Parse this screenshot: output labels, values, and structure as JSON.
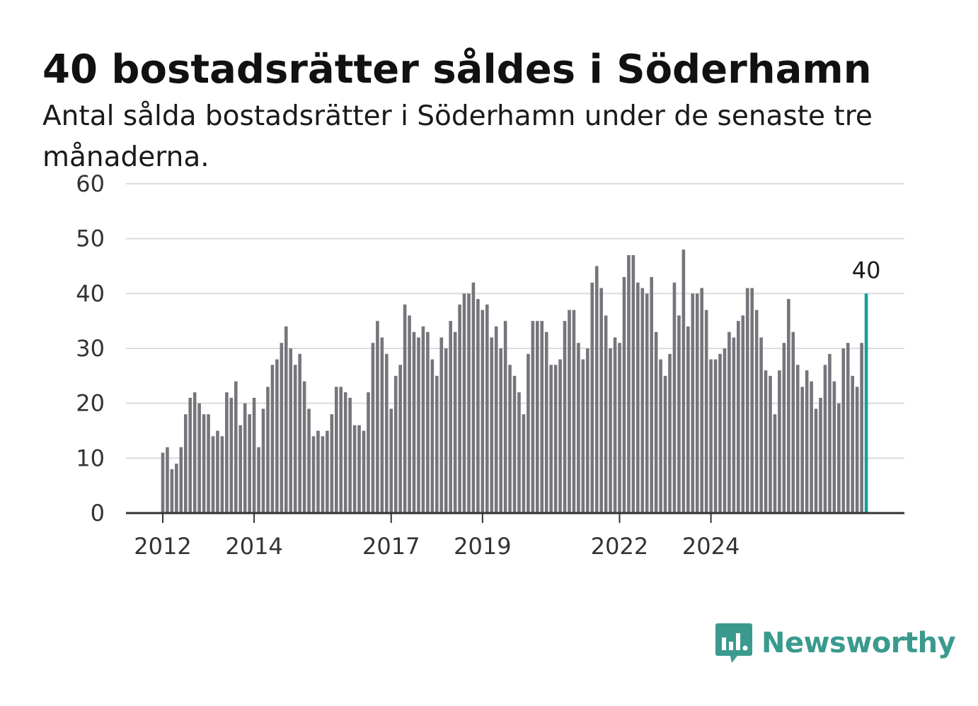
{
  "title": "40 bostadsrätter såldes i Söderhamn",
  "subtitle": "Antal sålda bostadsrätter i Söderhamn under de senaste tre månaderna.",
  "brand": {
    "name": "Newsworthy",
    "icon": "bar-chart-speech-bubble-icon",
    "color": "#3a9a8e"
  },
  "colors": {
    "bar": "#75757b",
    "highlight": "#14a096",
    "grid": "#dcdcdc",
    "axis": "#333333"
  },
  "chart_data": {
    "type": "bar",
    "ylim": [
      0,
      60
    ],
    "yticks": [
      0,
      10,
      20,
      30,
      40,
      50,
      60
    ],
    "xticks": [
      {
        "label": "2012",
        "index": 0
      },
      {
        "label": "2014",
        "index": 20
      },
      {
        "label": "2017",
        "index": 50
      },
      {
        "label": "2019",
        "index": 70
      },
      {
        "label": "2022",
        "index": 100
      },
      {
        "label": "2024",
        "index": 120
      }
    ],
    "values": [
      11,
      12,
      8,
      9,
      12,
      18,
      21,
      22,
      20,
      18,
      18,
      14,
      15,
      14,
      22,
      21,
      24,
      16,
      20,
      18,
      21,
      12,
      19,
      23,
      27,
      28,
      31,
      34,
      30,
      27,
      29,
      24,
      19,
      14,
      15,
      14,
      15,
      18,
      23,
      23,
      22,
      21,
      16,
      16,
      15,
      22,
      31,
      35,
      32,
      29,
      19,
      25,
      27,
      38,
      36,
      33,
      32,
      34,
      33,
      28,
      25,
      32,
      30,
      35,
      33,
      38,
      40,
      40,
      42,
      39,
      37,
      38,
      32,
      34,
      30,
      35,
      27,
      25,
      22,
      18,
      29,
      35,
      35,
      35,
      33,
      27,
      27,
      28,
      35,
      37,
      37,
      31,
      28,
      30,
      42,
      45,
      41,
      36,
      30,
      32,
      31,
      43,
      47,
      47,
      42,
      41,
      40,
      43,
      33,
      28,
      25,
      29,
      42,
      36,
      48,
      34,
      40,
      40,
      41,
      37,
      28,
      28,
      29,
      30,
      33,
      32,
      35,
      36,
      41,
      41,
      37,
      32,
      26,
      25,
      18,
      26,
      31,
      39,
      33,
      27,
      23,
      26,
      24,
      19,
      21,
      27,
      29,
      24,
      20,
      30,
      31,
      25,
      23,
      31,
      40
    ],
    "highlight_index": 154,
    "highlight_label": "40"
  }
}
